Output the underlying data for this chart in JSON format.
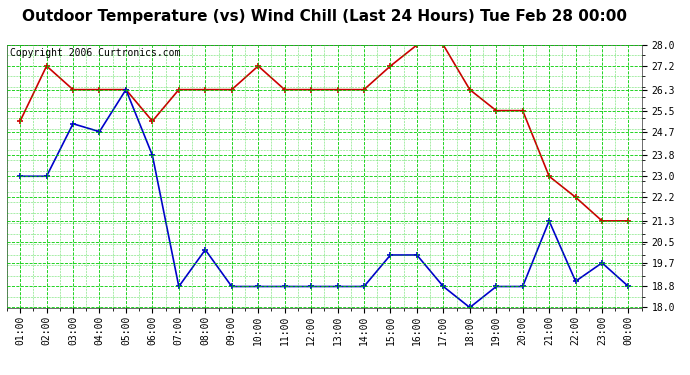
{
  "title": "Outdoor Temperature (vs) Wind Chill (Last 24 Hours) Tue Feb 28 00:00",
  "copyright": "Copyright 2006 Curtronics.com",
  "x_labels": [
    "01:00",
    "02:00",
    "03:00",
    "04:00",
    "05:00",
    "06:00",
    "07:00",
    "08:00",
    "09:00",
    "10:00",
    "11:00",
    "12:00",
    "13:00",
    "14:00",
    "15:00",
    "16:00",
    "17:00",
    "18:00",
    "19:00",
    "20:00",
    "21:00",
    "22:00",
    "23:00",
    "00:00"
  ],
  "temp_red": [
    25.1,
    27.2,
    26.3,
    26.3,
    26.3,
    25.1,
    26.3,
    26.3,
    26.3,
    27.2,
    26.3,
    26.3,
    26.3,
    26.3,
    27.2,
    28.0,
    28.0,
    26.3,
    25.5,
    25.5,
    23.0,
    22.2,
    21.3,
    21.3
  ],
  "wind_blue": [
    23.0,
    23.0,
    25.0,
    24.7,
    26.3,
    23.8,
    18.8,
    20.2,
    18.8,
    18.8,
    18.8,
    18.8,
    18.8,
    18.8,
    20.0,
    20.0,
    18.8,
    18.0,
    18.8,
    18.8,
    21.3,
    19.0,
    19.7,
    18.8
  ],
  "ylim_min": 18.0,
  "ylim_max": 28.0,
  "yticks": [
    18.0,
    18.8,
    19.7,
    20.5,
    21.3,
    22.2,
    23.0,
    23.8,
    24.7,
    25.5,
    26.3,
    27.2,
    28.0
  ],
  "bg_color": "#ffffff",
  "plot_bg_color": "#ffffff",
  "grid_color": "#00cc00",
  "red_line_color": "#cc0000",
  "blue_line_color": "#0000cc",
  "title_fontsize": 11,
  "copyright_fontsize": 7,
  "tick_fontsize": 7
}
